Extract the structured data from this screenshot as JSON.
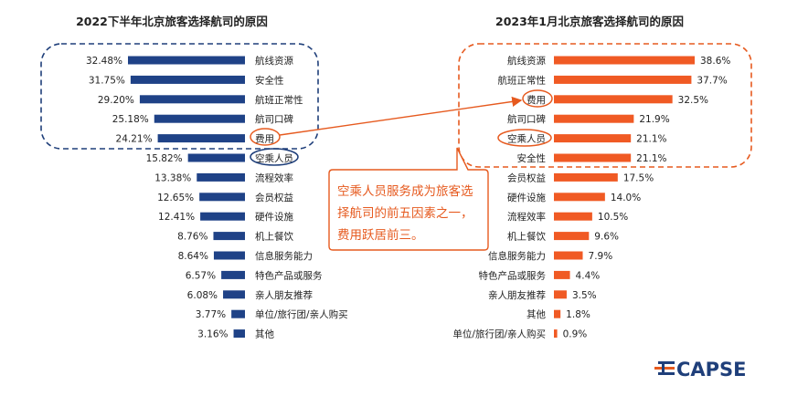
{
  "chart_data": [
    {
      "type": "bar",
      "orientation": "horizontal",
      "title": "2022下半年北京旅客选择航司的原因",
      "color": "#1f4287",
      "categories": [
        "航线资源",
        "安全性",
        "航班正常性",
        "航司口碑",
        "费用",
        "空乘人员",
        "流程效率",
        "会员权益",
        "硬件设施",
        "机上餐饮",
        "信息服务能力",
        "特色产品或服务",
        "亲人朋友推荐",
        "单位/旅行团/亲人购买",
        "其他"
      ],
      "values": [
        32.48,
        31.75,
        29.2,
        25.18,
        24.21,
        15.82,
        13.38,
        12.65,
        12.41,
        8.76,
        8.64,
        6.57,
        6.08,
        3.77,
        3.16
      ],
      "value_labels": [
        "32.48%",
        "31.75%",
        "29.20%",
        "25.18%",
        "24.21%",
        "15.82%",
        "13.38%",
        "12.65%",
        "12.41%",
        "8.76%",
        "8.64%",
        "6.57%",
        "6.08%",
        "3.77%",
        "3.16%"
      ],
      "bar_direction": "right-to-left"
    },
    {
      "type": "bar",
      "orientation": "horizontal",
      "title": "2023年1月北京旅客选择航司的原因",
      "color": "#f05a24",
      "categories": [
        "航线资源",
        "航班正常性",
        "费用",
        "航司口碑",
        "空乘人员",
        "安全性",
        "会员权益",
        "硬件设施",
        "流程效率",
        "机上餐饮",
        "信息服务能力",
        "特色产品或服务",
        "亲人朋友推荐",
        "其他",
        "单位/旅行团/亲人购买"
      ],
      "values": [
        38.6,
        37.7,
        32.5,
        21.9,
        21.1,
        21.1,
        17.5,
        14.0,
        10.5,
        9.6,
        7.9,
        4.4,
        3.5,
        1.8,
        0.9
      ],
      "value_labels": [
        "38.6%",
        "37.7%",
        "32.5%",
        "21.9%",
        "21.1%",
        "21.1%",
        "17.5%",
        "14.0%",
        "10.5%",
        "9.6%",
        "7.9%",
        "4.4%",
        "3.5%",
        "1.8%",
        "0.9%"
      ],
      "bar_direction": "left-to-right"
    }
  ],
  "callout": {
    "lines": [
      "空乘人员服务成为旅客选",
      "择航司的前五因素之一，",
      "费用跃居前三。"
    ],
    "color": "#e65a1f"
  },
  "highlights": {
    "left_box_color": "#1f3f7a",
    "right_box_color": "#e65a1f",
    "left_circled": [
      "费用",
      "空乘人员"
    ],
    "right_circled": [
      "费用",
      "空乘人员"
    ]
  },
  "logo": {
    "text": "CAPSE",
    "color": "#1f3f7a",
    "accent": "#e65a1f"
  }
}
